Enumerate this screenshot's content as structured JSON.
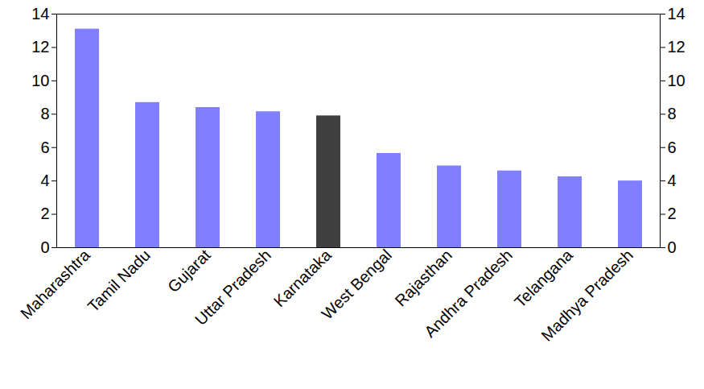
{
  "chart_data": {
    "type": "bar",
    "categories": [
      "Maharashtra",
      "Tamil Nadu",
      "Gujarat",
      "Uttar Pradesh",
      "Karnataka",
      "West Bengal",
      "Rajasthan",
      "Andhra Pradesh",
      "Telangana",
      "Madhya Pradesh"
    ],
    "values": [
      13.1,
      8.7,
      8.4,
      8.15,
      7.9,
      5.65,
      4.9,
      4.6,
      4.25,
      4.0
    ],
    "colors": [
      "#8080ff",
      "#8080ff",
      "#8080ff",
      "#8080ff",
      "#404040",
      "#8080ff",
      "#8080ff",
      "#8080ff",
      "#8080ff",
      "#8080ff"
    ],
    "ylim": [
      0,
      14
    ],
    "yticks": [
      0,
      2,
      4,
      6,
      8,
      10,
      12,
      14
    ],
    "y2lim": [
      0,
      14
    ],
    "y2ticks": [
      0,
      2,
      4,
      6,
      8,
      10,
      12,
      14
    ],
    "grid": false
  }
}
